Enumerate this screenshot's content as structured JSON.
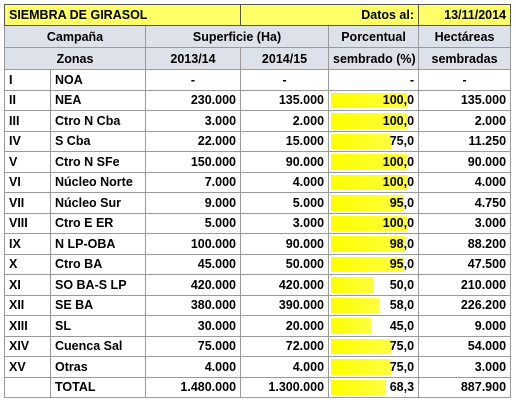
{
  "header": {
    "title": "SIEMBRA DE GIRASOL",
    "dates_label": "Datos al:",
    "date": "13/11/2014"
  },
  "table": {
    "columns_top": [
      "Campaña",
      "Superficie (Ha)",
      "Porcentual",
      "Hectáreas"
    ],
    "columns_bottom": [
      "Zonas",
      "2013/14",
      "2014/15",
      "sembrado (%)",
      "sembradas"
    ],
    "rows": [
      [
        "I",
        "NOA",
        "-",
        "-",
        "-",
        "-"
      ],
      [
        "II",
        "NEA",
        "230.000",
        "135.000",
        "100,0",
        "135.000"
      ],
      [
        "III",
        "Ctro N Cba",
        "3.000",
        "2.000",
        "100,0",
        "2.000"
      ],
      [
        "IV",
        "S Cba",
        "22.000",
        "15.000",
        "75,0",
        "11.250"
      ],
      [
        "V",
        "Ctro N SFe",
        "150.000",
        "90.000",
        "100,0",
        "90.000"
      ],
      [
        "VI",
        "Núcleo Norte",
        "7.000",
        "4.000",
        "100,0",
        "4.000"
      ],
      [
        "VII",
        "Núcleo Sur",
        "9.000",
        "5.000",
        "95,0",
        "4.750"
      ],
      [
        "VIII",
        "Ctro E ER",
        "5.000",
        "3.000",
        "100,0",
        "3.000"
      ],
      [
        "IX",
        "N LP-OBA",
        "100.000",
        "90.000",
        "98,0",
        "88.200"
      ],
      [
        "X",
        "Ctro BA",
        "45.000",
        "50.000",
        "95,0",
        "47.500"
      ],
      [
        "XI",
        "SO BA-S LP",
        "420.000",
        "420.000",
        "50,0",
        "210.000"
      ],
      [
        "XII",
        "SE BA",
        "380.000",
        "390.000",
        "58,0",
        "226.200"
      ],
      [
        "XIII",
        "SL",
        "30.000",
        "20.000",
        "45,0",
        "9.000"
      ],
      [
        "XIV",
        "Cuenca Sal",
        "75.000",
        "72.000",
        "75,0",
        "54.000"
      ],
      [
        "XV",
        "Otras",
        "4.000",
        "4.000",
        "75,0",
        "3.000"
      ]
    ],
    "total": {
      "label": "TOTAL",
      "values": [
        "1.480.000",
        "1.300.000",
        "68,3",
        "887.900"
      ]
    }
  }
}
